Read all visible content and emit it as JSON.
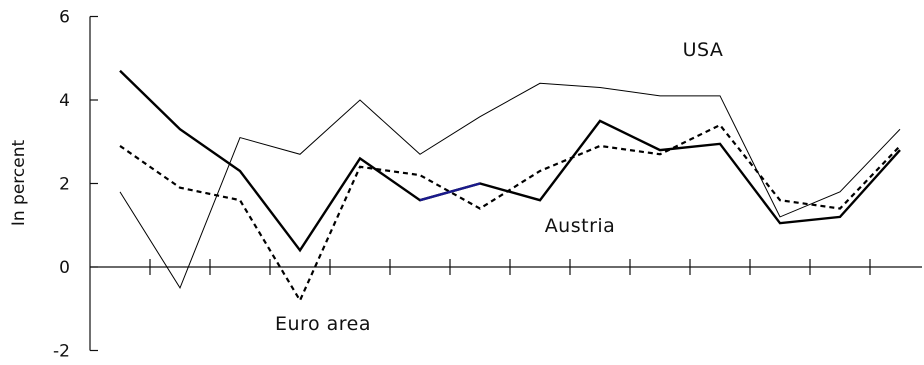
{
  "chart_data": {
    "type": "line",
    "ylabel": "In percent",
    "ylim": [
      -2,
      6
    ],
    "yticks": [
      6,
      4,
      2,
      0,
      -2
    ],
    "x": [
      1,
      2,
      3,
      4,
      5,
      6,
      7,
      8,
      9,
      10,
      11,
      12,
      13,
      14
    ],
    "grid": false,
    "series": [
      {
        "name": "USA",
        "style": "solid-thin",
        "color": "#000000",
        "values": [
          1.8,
          -0.5,
          3.1,
          2.7,
          4.0,
          2.7,
          3.6,
          4.4,
          4.3,
          4.1,
          4.1,
          1.2,
          1.8,
          3.3
        ]
      },
      {
        "name": "Austria",
        "style": "solid-thick",
        "color": "#000000",
        "values": [
          4.7,
          3.3,
          2.3,
          0.4,
          2.6,
          1.6,
          2.0,
          1.6,
          3.5,
          2.8,
          2.95,
          1.05,
          1.2,
          2.8
        ]
      },
      {
        "name": "Euro area",
        "style": "dashed",
        "color": "#000000",
        "values": [
          2.9,
          1.9,
          1.6,
          -0.8,
          2.4,
          2.2,
          1.4,
          2.3,
          2.9,
          2.7,
          3.4,
          1.6,
          1.4,
          2.9
        ]
      }
    ],
    "highlight_segment": {
      "series": "Austria",
      "from_index": 5,
      "to_index": 6,
      "color": "#1a1a8c"
    }
  }
}
